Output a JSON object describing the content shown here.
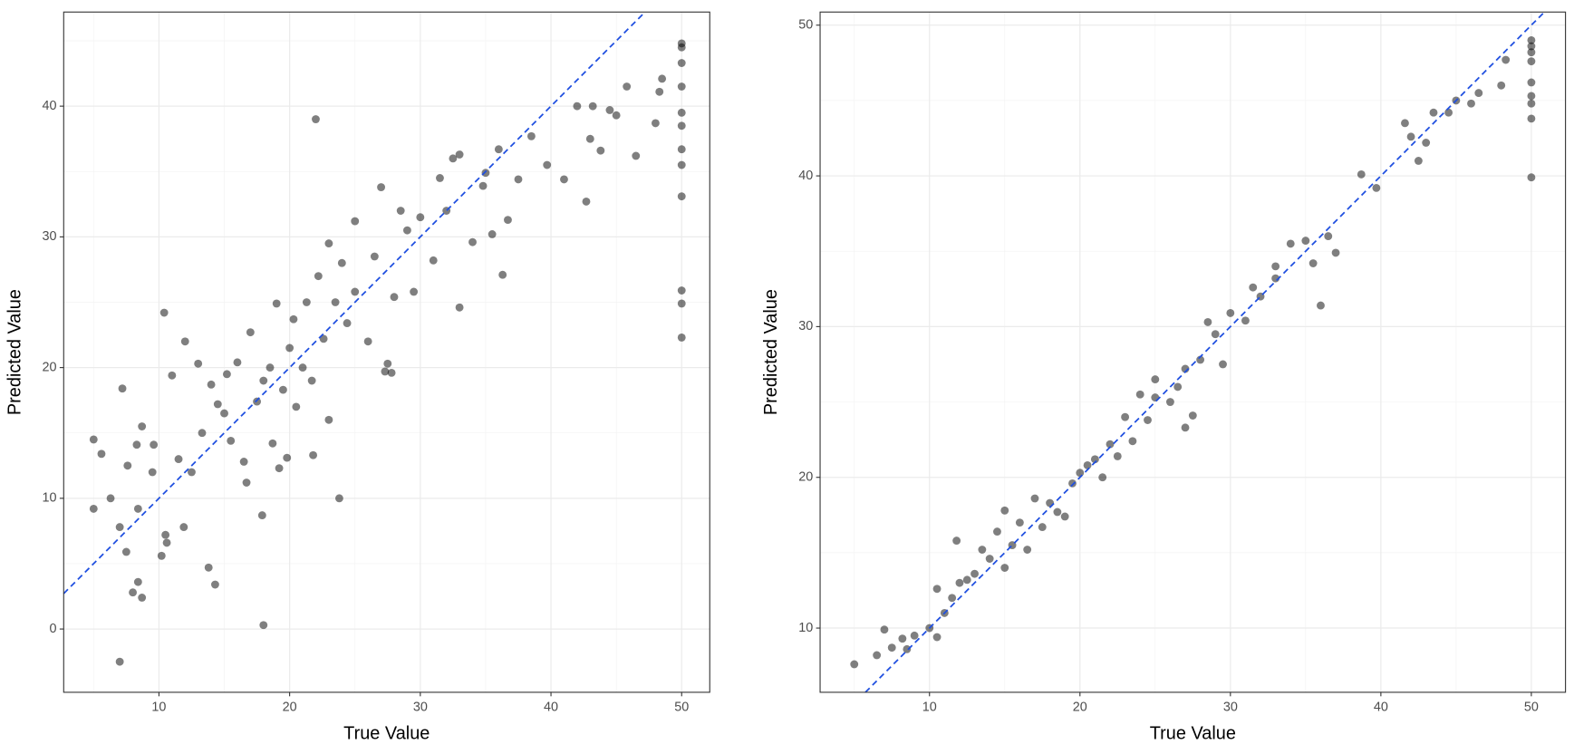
{
  "chart_data": [
    {
      "type": "scatter",
      "xlabel": "True Value",
      "ylabel": "Predicted Value",
      "xlim": [
        2.71,
        52.15
      ],
      "ylim": [
        -4.84,
        47.2
      ],
      "xticks": [
        10,
        20,
        30,
        40,
        50
      ],
      "yticks": [
        0,
        10,
        20,
        30,
        40
      ],
      "grid": true,
      "diagonal": true,
      "diagonal_color": "#1f4fe0",
      "series": [
        {
          "color": "#000000",
          "x": [
            5,
            5,
            5.6,
            6.3,
            7,
            7,
            7.2,
            7.5,
            7.6,
            8,
            8.3,
            8.4,
            8.7,
            8.4,
            8.7,
            9.5,
            9.6,
            10.2,
            10.4,
            10.5,
            10.6,
            11,
            11.5,
            11.9,
            12,
            12.5,
            13,
            13.3,
            13.8,
            14.3,
            14,
            14.5,
            15,
            15.2,
            15.5,
            16,
            16.5,
            16.7,
            17,
            17.5,
            17.9,
            18,
            18,
            18.5,
            18.7,
            19,
            19.2,
            19.5,
            19.8,
            20,
            20.3,
            20.5,
            21,
            21.3,
            21.7,
            22,
            21.8,
            22.2,
            22.6,
            23,
            23,
            23.5,
            23.8,
            24,
            24.4,
            25,
            25,
            26,
            26.5,
            27,
            27.3,
            27.5,
            27.8,
            28,
            28.5,
            29,
            29.5,
            30,
            31,
            31.5,
            32,
            32.5,
            33,
            33,
            34,
            34.8,
            35,
            35.5,
            36,
            36.3,
            36.7,
            37.5,
            38.5,
            39.7,
            41,
            42,
            42.7,
            43,
            43.2,
            43.8,
            44.5,
            45,
            45.8,
            46.5,
            48,
            48.3,
            48.5,
            50,
            50,
            50,
            50,
            50,
            50,
            50,
            50,
            50,
            50,
            50,
            50
          ],
          "y": [
            14.5,
            9.2,
            13.4,
            10,
            7.8,
            -2.5,
            18.4,
            5.9,
            12.5,
            2.8,
            14.1,
            3.6,
            2.4,
            9.2,
            15.5,
            12,
            14.1,
            5.6,
            24.2,
            7.2,
            6.6,
            19.4,
            13,
            7.8,
            22,
            12,
            20.3,
            15,
            4.7,
            3.4,
            18.7,
            17.2,
            16.5,
            19.5,
            14.4,
            20.4,
            12.8,
            11.2,
            22.7,
            17.4,
            8.7,
            0.3,
            19,
            20,
            14.2,
            24.9,
            12.3,
            18.3,
            13.1,
            21.5,
            23.7,
            17,
            20,
            25,
            19,
            39,
            13.3,
            27,
            22.2,
            29.5,
            16,
            25,
            10,
            28,
            23.4,
            31.2,
            25.8,
            22,
            28.5,
            33.8,
            19.7,
            20.3,
            19.6,
            25.4,
            32,
            30.5,
            25.8,
            31.5,
            28.2,
            34.5,
            32,
            36,
            24.6,
            36.3,
            29.6,
            33.9,
            34.9,
            30.2,
            36.7,
            27.1,
            31.3,
            34.4,
            37.7,
            35.5,
            34.4,
            40,
            32.7,
            37.5,
            40,
            36.6,
            39.7,
            39.3,
            41.5,
            36.2,
            38.7,
            41.1,
            42.1,
            44.8,
            44.5,
            43.3,
            41.5,
            39.5,
            38.5,
            36.7,
            35.5,
            33.1,
            25.9,
            24.9,
            22.3
          ]
        }
      ]
    },
    {
      "type": "scatter",
      "xlabel": "True Value",
      "ylabel": "Predicted Value",
      "xlim": [
        2.73,
        52.27
      ],
      "ylim": [
        5.74,
        50.87
      ],
      "xticks": [
        10,
        20,
        30,
        40,
        50
      ],
      "yticks": [
        10,
        20,
        30,
        40,
        50
      ],
      "grid": true,
      "diagonal": true,
      "diagonal_color": "#1f4fe0",
      "series": [
        {
          "color": "#000000",
          "x": [
            5,
            6.5,
            7,
            7.5,
            8.2,
            8.5,
            9,
            10,
            10.5,
            10.5,
            11,
            11.5,
            11.8,
            12,
            12.5,
            13,
            13.5,
            14,
            14.5,
            15,
            15,
            15.5,
            16,
            16.5,
            17,
            17.5,
            18,
            18.5,
            19,
            19.5,
            20,
            20.5,
            21,
            21.5,
            22,
            22.5,
            23,
            23.5,
            24,
            24.5,
            25,
            25,
            26,
            26.5,
            27,
            27,
            27.5,
            28,
            28.5,
            29,
            29.5,
            30,
            31,
            31.5,
            32,
            33,
            33,
            34,
            35,
            35.5,
            36,
            36.5,
            37,
            38.7,
            39.7,
            41.6,
            42,
            42.5,
            43,
            43.5,
            44.5,
            45,
            46,
            46.5,
            48,
            48.3,
            50,
            50,
            50,
            50,
            50,
            50,
            50,
            50,
            50
          ],
          "y": [
            7.6,
            8.2,
            9.9,
            8.7,
            9.3,
            8.6,
            9.5,
            10,
            9.4,
            12.6,
            11,
            12,
            15.8,
            13,
            13.2,
            13.6,
            15.2,
            14.6,
            16.4,
            17.8,
            14,
            15.5,
            17,
            15.2,
            18.6,
            16.7,
            18.3,
            17.7,
            17.4,
            19.6,
            20.3,
            20.8,
            21.2,
            20,
            22.2,
            21.4,
            24,
            22.4,
            25.5,
            23.8,
            25.3,
            26.5,
            25,
            26,
            27.2,
            23.3,
            24.1,
            27.8,
            30.3,
            29.5,
            27.5,
            30.9,
            30.4,
            32.6,
            32,
            33.2,
            34,
            35.5,
            35.7,
            34.2,
            31.4,
            36,
            34.9,
            40.1,
            39.2,
            43.5,
            42.6,
            41,
            42.2,
            44.2,
            44.2,
            45,
            44.8,
            45.5,
            46,
            47.7,
            49,
            48.6,
            48.2,
            47.6,
            46.2,
            45.3,
            44.8,
            43.8,
            39.9
          ]
        }
      ]
    }
  ]
}
